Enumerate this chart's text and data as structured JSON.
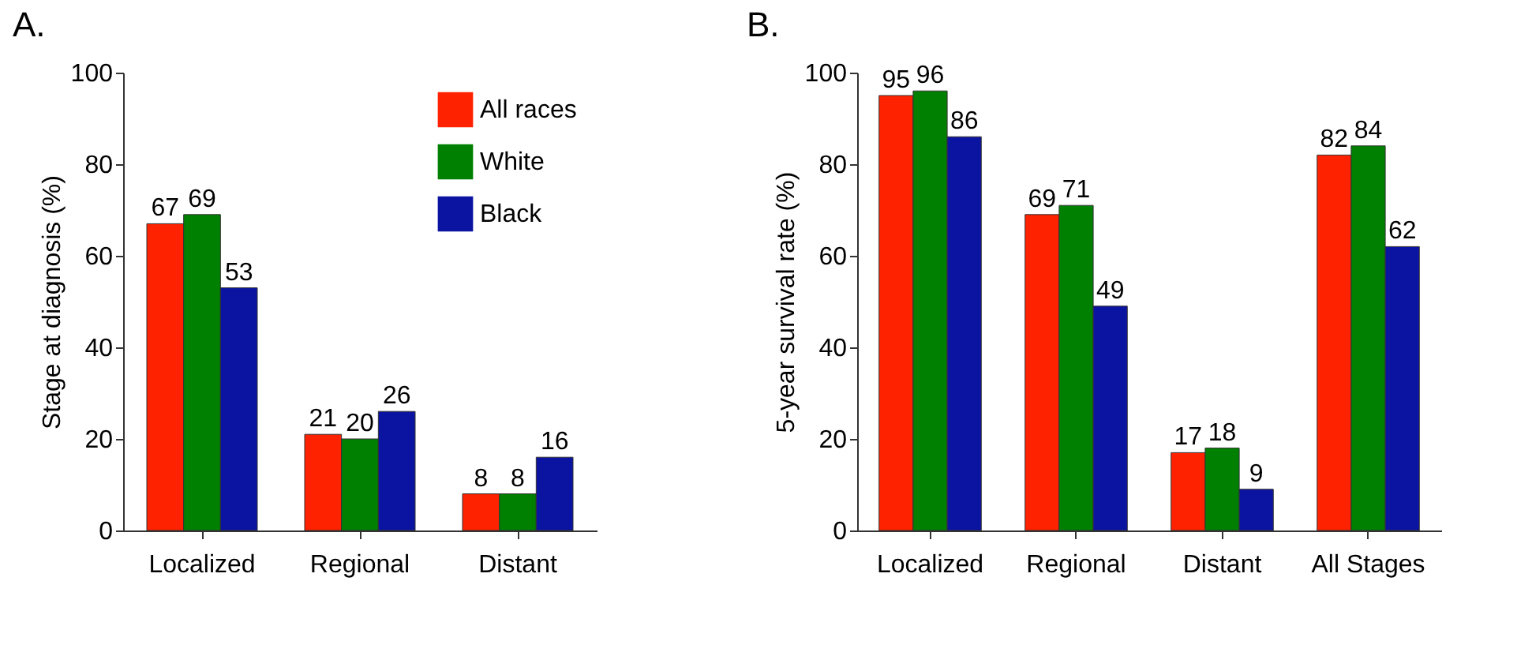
{
  "chart_data": [
    {
      "type": "bar",
      "title": "A.",
      "ylabel": "Stage at diagnosis (%)",
      "categories": [
        "Localized",
        "Regional",
        "Distant"
      ],
      "series": [
        {
          "name": "All races",
          "color": "#ff2200",
          "values": [
            67,
            21,
            8
          ]
        },
        {
          "name": "White",
          "color": "#008000",
          "values": [
            69,
            20,
            8
          ]
        },
        {
          "name": "Black",
          "color": "#0a14a0",
          "values": [
            53,
            26,
            16
          ]
        }
      ],
      "ylim": [
        0,
        100
      ],
      "yticks": [
        0,
        20,
        40,
        60,
        80,
        100
      ],
      "data_labels": true,
      "legend": "top right",
      "grid": false
    },
    {
      "type": "bar",
      "title": "B.",
      "ylabel": "5-year survival rate (%)",
      "categories": [
        "Localized",
        "Regional",
        "Distant",
        "All Stages"
      ],
      "series": [
        {
          "color": "#ff2200",
          "values": [
            95,
            69,
            17,
            82
          ]
        },
        {
          "color": "#008000",
          "values": [
            96,
            71,
            18,
            84
          ]
        },
        {
          "color": "#0a14a0",
          "values": [
            86,
            49,
            9,
            62
          ]
        }
      ],
      "ylim": [
        0,
        100
      ],
      "yticks": [
        0,
        20,
        40,
        60,
        80,
        100
      ],
      "data_labels": true,
      "legend": false,
      "grid": false
    }
  ]
}
